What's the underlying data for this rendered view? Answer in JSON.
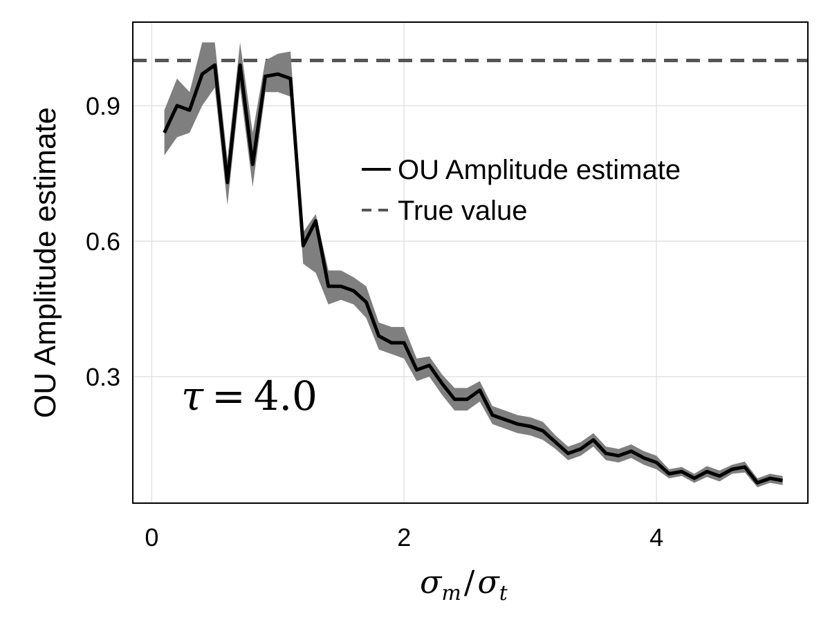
{
  "chart_data": {
    "type": "line",
    "ylabel": "OU Amplitude estimate",
    "xlabel": {
      "text": "σm/σt",
      "parts": {
        "a": "σ",
        "a_sub": "m",
        "slash": "/",
        "b": "σ",
        "b_sub": "t"
      }
    },
    "annotation": {
      "text": "τ = 4.0",
      "parts": {
        "symbol": "τ",
        "eq": "=",
        "value": "4.0"
      }
    },
    "xlim": [
      -0.15,
      5.2
    ],
    "ylim": [
      0.02,
      1.085
    ],
    "xticks": [
      0,
      2,
      4
    ],
    "xtick_labels": [
      "0",
      "2",
      "4"
    ],
    "yticks": [
      0.3,
      0.6,
      0.9
    ],
    "ytick_labels": [
      "0.3",
      "0.6",
      "0.9"
    ],
    "grid": true,
    "legend_position": "upper-right",
    "legend": [
      {
        "label": "OU Amplitude estimate",
        "style": "solid"
      },
      {
        "label": "True value",
        "style": "dashed"
      }
    ],
    "reference_line": {
      "y": 1.0,
      "color": "#555555",
      "style": "dashed"
    },
    "band_color": "#7f7f7f",
    "line_color": "#000000",
    "series": [
      {
        "x": [
          0.1,
          0.2,
          0.3,
          0.4,
          0.5,
          0.6,
          0.7,
          0.8,
          0.9,
          1.0,
          1.1,
          1.2,
          1.3,
          1.4,
          1.5,
          1.6,
          1.7,
          1.8,
          1.9,
          2.0,
          2.1,
          2.2,
          2.3,
          2.4,
          2.5,
          2.6,
          2.7,
          2.8,
          2.9,
          3.0,
          3.1,
          3.2,
          3.3,
          3.4,
          3.5,
          3.6,
          3.7,
          3.8,
          3.9,
          4.0,
          4.1,
          4.2,
          4.3,
          4.4,
          4.5,
          4.6,
          4.7,
          4.8,
          4.9,
          5.0
        ],
        "values": [
          0.84,
          0.9,
          0.89,
          0.97,
          0.99,
          0.73,
          0.99,
          0.77,
          0.965,
          0.97,
          0.96,
          0.59,
          0.645,
          0.5,
          0.5,
          0.49,
          0.465,
          0.39,
          0.375,
          0.375,
          0.315,
          0.325,
          0.285,
          0.25,
          0.25,
          0.27,
          0.215,
          0.205,
          0.195,
          0.19,
          0.18,
          0.155,
          0.13,
          0.14,
          0.16,
          0.13,
          0.125,
          0.135,
          0.12,
          0.11,
          0.085,
          0.09,
          0.075,
          0.09,
          0.08,
          0.095,
          0.1,
          0.065,
          0.075,
          0.07
        ],
        "lower": [
          0.79,
          0.83,
          0.84,
          0.9,
          0.94,
          0.68,
          0.94,
          0.72,
          0.93,
          0.93,
          0.92,
          0.55,
          0.53,
          0.46,
          0.47,
          0.46,
          0.43,
          0.36,
          0.35,
          0.34,
          0.29,
          0.3,
          0.26,
          0.225,
          0.225,
          0.245,
          0.195,
          0.185,
          0.175,
          0.17,
          0.16,
          0.14,
          0.115,
          0.125,
          0.145,
          0.115,
          0.11,
          0.12,
          0.105,
          0.095,
          0.075,
          0.08,
          0.065,
          0.078,
          0.068,
          0.085,
          0.088,
          0.055,
          0.065,
          0.06
        ],
        "upper": [
          0.89,
          0.96,
          0.93,
          1.04,
          1.04,
          0.78,
          1.04,
          0.84,
          1.0,
          1.015,
          1.02,
          0.62,
          0.66,
          0.535,
          0.535,
          0.52,
          0.5,
          0.42,
          0.41,
          0.41,
          0.34,
          0.345,
          0.305,
          0.275,
          0.275,
          0.29,
          0.235,
          0.225,
          0.215,
          0.21,
          0.2,
          0.17,
          0.145,
          0.155,
          0.175,
          0.145,
          0.14,
          0.15,
          0.135,
          0.125,
          0.095,
          0.1,
          0.085,
          0.102,
          0.092,
          0.105,
          0.112,
          0.075,
          0.085,
          0.08
        ]
      }
    ]
  }
}
